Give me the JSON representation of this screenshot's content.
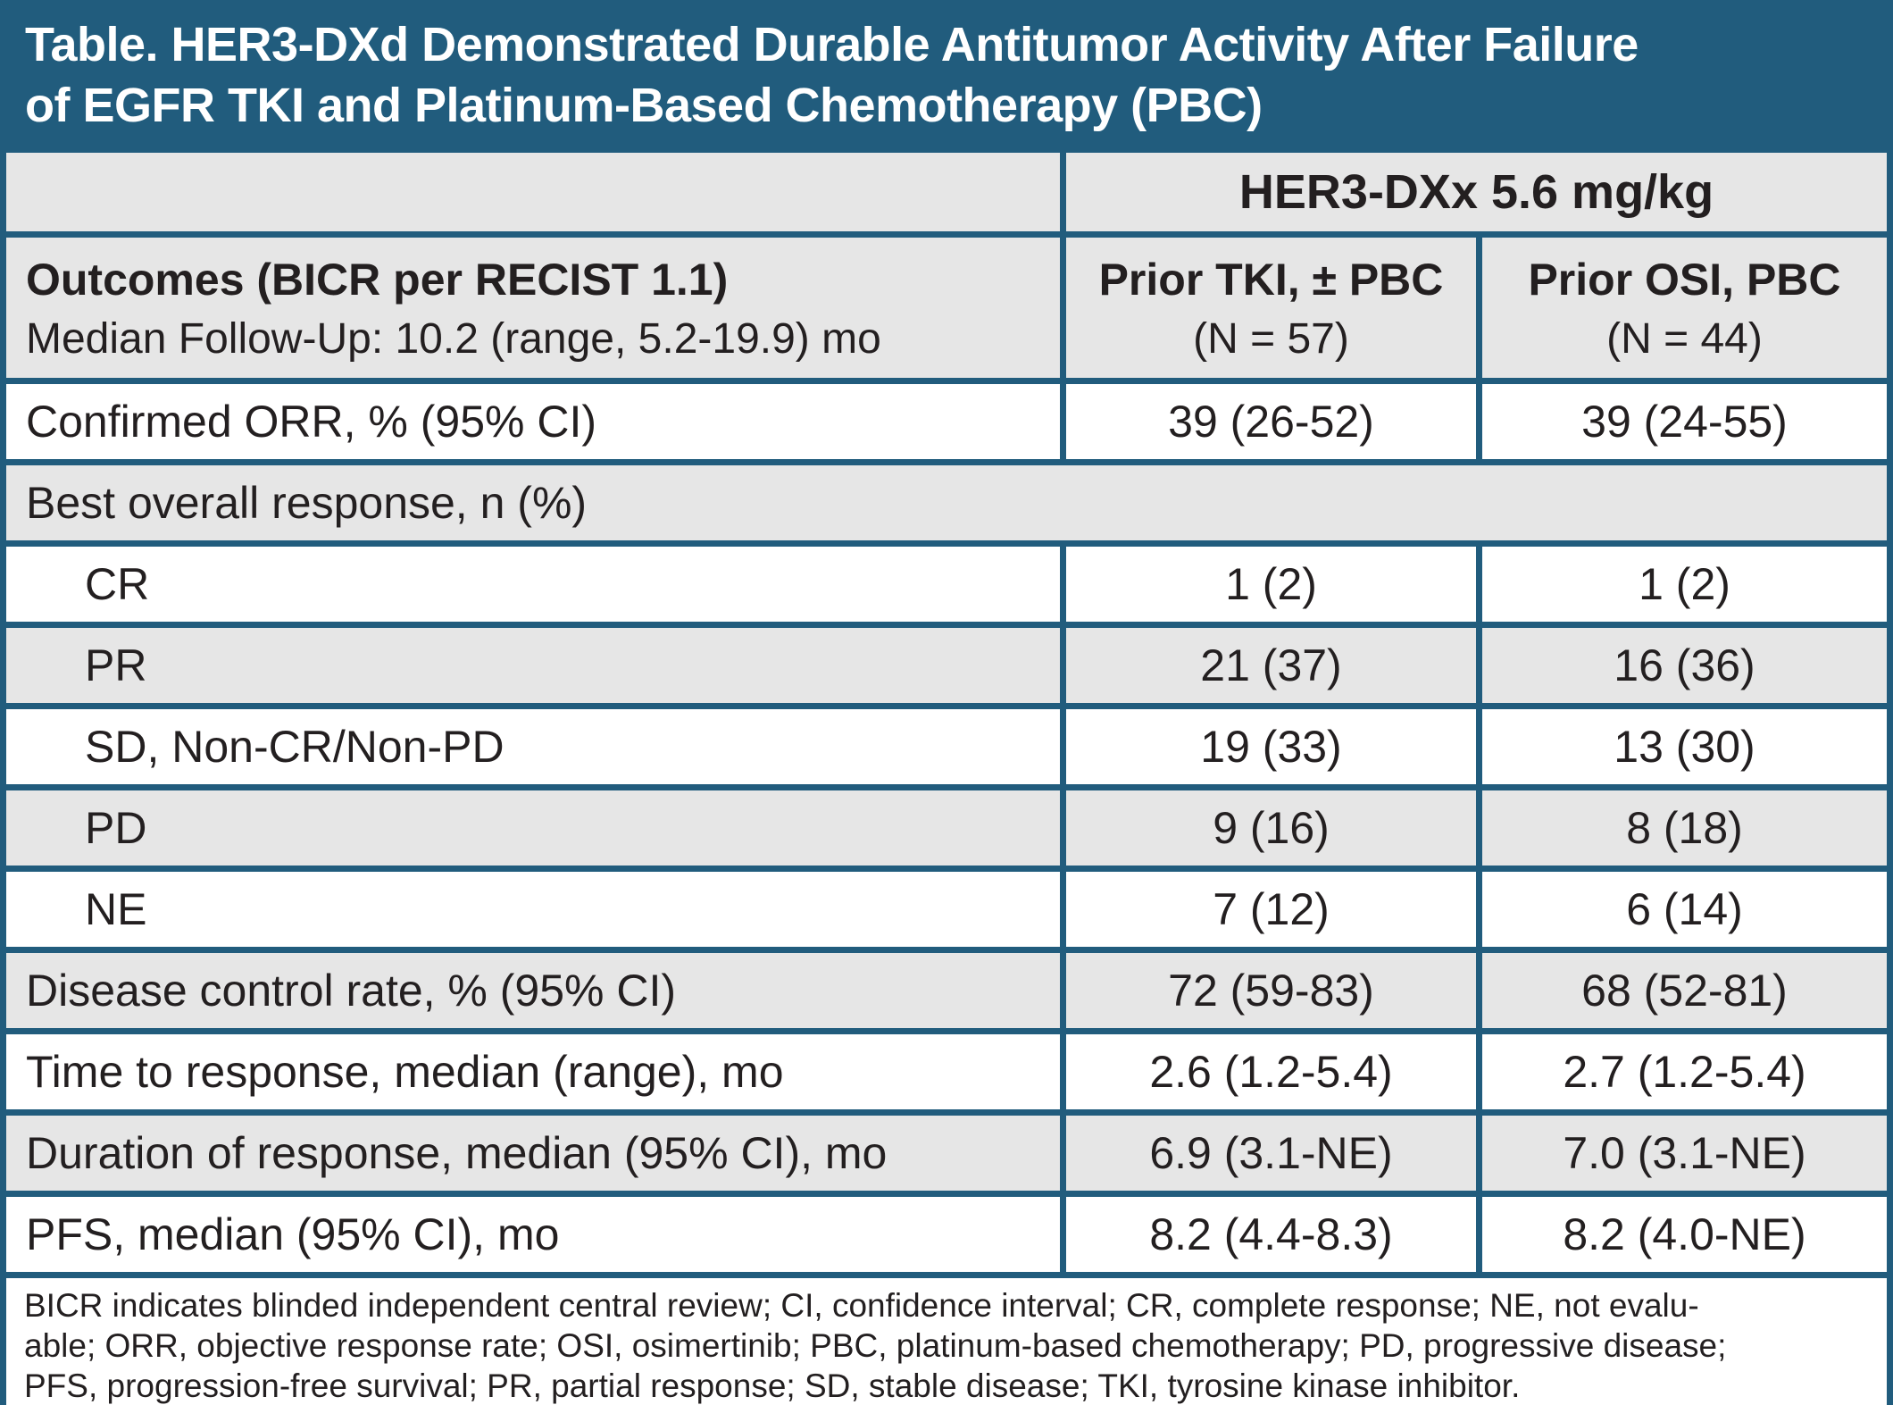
{
  "title": {
    "line1": "Table. HER3-DXd Demonstrated Durable Antitumor Activity After Failure",
    "line2": "of EGFR TKI and Platinum-Based Chemotherapy (PBC)"
  },
  "colors": {
    "accent_blue": "#215C7D",
    "row_gray": "#E6E6E6",
    "row_white": "#FFFFFF",
    "text_dark": "#231F20"
  },
  "table": {
    "span_header": "HER3-DXx 5.6 mg/kg",
    "col1_header": {
      "title": "Outcomes (BICR per RECIST 1.1)",
      "subtitle": "Median Follow-Up: 10.2 (range, 5.2-19.9) mo"
    },
    "col2_header": {
      "title": "Prior TKI, ± PBC",
      "subtitle": "(N = 57)"
    },
    "col3_header": {
      "title": "Prior OSI, PBC",
      "subtitle": "(N = 44)"
    },
    "rows": [
      {
        "label": "Confirmed ORR, % (95% CI)",
        "tki": "39 (26-52)",
        "osi": "39 (24-55)"
      },
      {
        "label": "Best overall response, n (%)",
        "tki": "",
        "osi": ""
      },
      {
        "label": "CR",
        "tki": "1 (2)",
        "osi": "1 (2)"
      },
      {
        "label": "PR",
        "tki": "21 (37)",
        "osi": "16 (36)"
      },
      {
        "label": "SD, Non-CR/Non-PD",
        "tki": "19 (33)",
        "osi": "13 (30)"
      },
      {
        "label": "PD",
        "tki": "9 (16)",
        "osi": "8 (18)"
      },
      {
        "label": "NE",
        "tki": "7 (12)",
        "osi": "6 (14)"
      },
      {
        "label": "Disease control rate, % (95% CI)",
        "tki": "72 (59-83)",
        "osi": "68 (52-81)"
      },
      {
        "label": "Time to response, median (range), mo",
        "tki": "2.6 (1.2-5.4)",
        "osi": "2.7 (1.2-5.4)"
      },
      {
        "label": "Duration of response, median (95% CI), mo",
        "tki": "6.9 (3.1-NE)",
        "osi": "7.0 (3.1-NE)"
      },
      {
        "label": "PFS, median (95% CI), mo",
        "tki": "8.2 (4.4-8.3)",
        "osi": "8.2 (4.0-NE)"
      }
    ],
    "footnote_lines": [
      "BICR indicates blinded independent central review; CI, confidence interval; CR, complete response; NE, not evalu-",
      "able; ORR, objective response rate; OSI, osimertinib; PBC, platinum-based chemotherapy; PD, progressive disease;",
      "PFS, progression-free survival; PR, partial response; SD, stable disease; TKI, tyrosine kinase inhibitor."
    ]
  }
}
